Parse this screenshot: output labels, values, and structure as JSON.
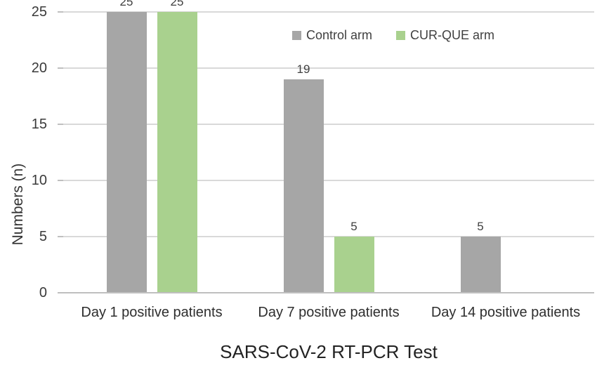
{
  "chart_data": {
    "type": "bar",
    "categories": [
      "Day 1 positive patients",
      "Day 7 positive patients",
      "Day 14 positive patients"
    ],
    "series": [
      {
        "name": "Control arm",
        "color": "#A6A6A6",
        "values": [
          25,
          19,
          5
        ]
      },
      {
        "name": "CUR-QUE arm",
        "color": "#A9D18E",
        "values": [
          25,
          5,
          0
        ]
      }
    ],
    "xlabel": "SARS-CoV-2 RT-PCR Test",
    "ylabel": "Numbers (n)",
    "ylim": [
      0,
      25
    ],
    "yticks": [
      0,
      5,
      10,
      15,
      20,
      25
    ],
    "grid": true,
    "legend_position": "top",
    "data_labels": true,
    "hide_zero_bars": true
  },
  "colors": {
    "control_bar": "#A6A6A6",
    "curque_bar": "#A9D18E",
    "gridline": "#D9D9D9",
    "axis_line": "#BFBFBF",
    "label_text": "#404040"
  }
}
